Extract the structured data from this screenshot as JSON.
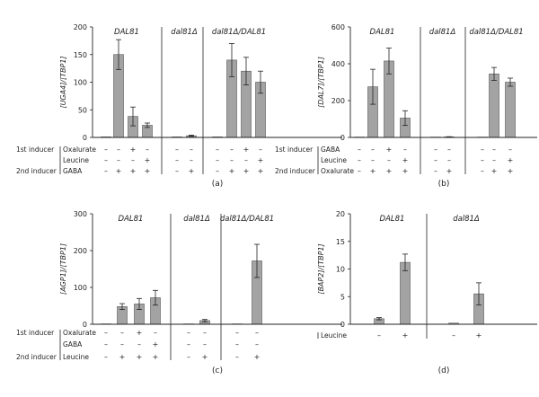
{
  "chart_data": [
    {
      "type": "bar",
      "panel_label": "(a)",
      "ylabel": "[UGA4]/[TBP1]",
      "ylim": [
        0,
        200
      ],
      "yticks": [
        "0",
        "50",
        "100",
        "150",
        "200"
      ],
      "groups": [
        {
          "label": "DAL81",
          "values": [
            1,
            150,
            38,
            22
          ],
          "errors": [
            0,
            27,
            17,
            4
          ]
        },
        {
          "label": "dal81Δ",
          "values": [
            1,
            3
          ],
          "errors": [
            0,
            1
          ]
        },
        {
          "label": "dal81Δ/DAL81",
          "values": [
            1,
            140,
            120,
            100
          ],
          "errors": [
            0,
            30,
            25,
            20
          ]
        }
      ],
      "conditions": [
        {
          "title": "1st inducer",
          "label": "Oxalurate",
          "signs": [
            [
              "–",
              "–",
              "+",
              "–"
            ],
            [
              "–",
              "–"
            ],
            [
              "–",
              "–",
              "+",
              "–"
            ]
          ]
        },
        {
          "title": "",
          "label": "Leucine",
          "signs": [
            [
              "–",
              "–",
              "–",
              "+"
            ],
            [
              "–",
              "–"
            ],
            [
              "–",
              "–",
              "–",
              "+"
            ]
          ]
        },
        {
          "title": "2nd inducer",
          "label": "GABA",
          "signs": [
            [
              "–",
              "+",
              "+",
              "+"
            ],
            [
              "–",
              "+"
            ],
            [
              "–",
              "+",
              "+",
              "+"
            ]
          ]
        }
      ]
    },
    {
      "type": "bar",
      "panel_label": "(b)",
      "ylabel": "[DAL7]/[TBP1]",
      "ylim": [
        0,
        600
      ],
      "yticks": [
        "0",
        "200",
        "400",
        "600"
      ],
      "groups": [
        {
          "label": "DAL81",
          "values": [
            2,
            275,
            415,
            105
          ],
          "errors": [
            0,
            95,
            70,
            40
          ]
        },
        {
          "label": "dal81Δ",
          "values": [
            2,
            3
          ],
          "errors": [
            0,
            1
          ]
        },
        {
          "label": "dal81Δ/DAL81",
          "values": [
            2,
            345,
            300
          ],
          "errors": [
            0,
            35,
            22
          ]
        }
      ],
      "conditions": [
        {
          "title": "1st inducer",
          "label": "GABA",
          "signs": [
            [
              "–",
              "–",
              "+",
              "–"
            ],
            [
              "–",
              "–"
            ],
            [
              "–",
              "–",
              "–"
            ]
          ]
        },
        {
          "title": "",
          "label": "Leucine",
          "signs": [
            [
              "–",
              "–",
              "–",
              "+"
            ],
            [
              "–",
              "–"
            ],
            [
              "–",
              "–",
              "+"
            ]
          ]
        },
        {
          "title": "2nd inducer",
          "label": "Oxalurate",
          "signs": [
            [
              "–",
              "+",
              "+",
              "+"
            ],
            [
              "–",
              "+"
            ],
            [
              "–",
              "+",
              "+"
            ]
          ]
        }
      ]
    },
    {
      "type": "bar",
      "panel_label": "(c)",
      "ylabel": "[AGP1]/[TBP1]",
      "ylim": [
        0,
        300
      ],
      "yticks": [
        "0",
        "100",
        "200",
        "300"
      ],
      "groups": [
        {
          "label": "DAL81",
          "values": [
            1,
            48,
            55,
            72
          ],
          "errors": [
            0,
            8,
            15,
            20
          ]
        },
        {
          "label": "dal81Δ",
          "values": [
            1,
            10
          ],
          "errors": [
            0,
            3
          ]
        },
        {
          "label": "dal81Δ/DAL81",
          "values": [
            1,
            172
          ],
          "errors": [
            0,
            45
          ]
        }
      ],
      "conditions": [
        {
          "title": "1st inducer",
          "label": "Oxalurate",
          "signs": [
            [
              "–",
              "–",
              "+",
              "–"
            ],
            [
              "–",
              "–"
            ],
            [
              "–",
              "–"
            ]
          ]
        },
        {
          "title": "",
          "label": "GABA",
          "signs": [
            [
              "–",
              "–",
              "–",
              "+"
            ],
            [
              "–",
              "–"
            ],
            [
              "–",
              "–"
            ]
          ]
        },
        {
          "title": "2nd inducer",
          "label": "Leucine",
          "signs": [
            [
              "–",
              "+",
              "+",
              "+"
            ],
            [
              "–",
              "+"
            ],
            [
              "–",
              "+"
            ]
          ]
        }
      ]
    },
    {
      "type": "bar",
      "panel_label": "(d)",
      "ylabel": "[BAP2]/[TBP1]",
      "ylim": [
        0,
        20
      ],
      "yticks": [
        "0",
        "5",
        "10",
        "15",
        "20"
      ],
      "groups": [
        {
          "label": "DAL81",
          "values": [
            1,
            11.2
          ],
          "errors": [
            0.2,
            1.5
          ]
        },
        {
          "label": "dal81Δ",
          "values": [
            0.2,
            5.5
          ],
          "errors": [
            0,
            2
          ]
        }
      ],
      "conditions": [
        {
          "title": "",
          "label": "Leucine",
          "signs": [
            [
              "–",
              "+"
            ],
            [
              "–",
              "+"
            ]
          ]
        }
      ]
    }
  ],
  "colors": {
    "bar": "#a3a3a3",
    "axis": "#222222"
  }
}
